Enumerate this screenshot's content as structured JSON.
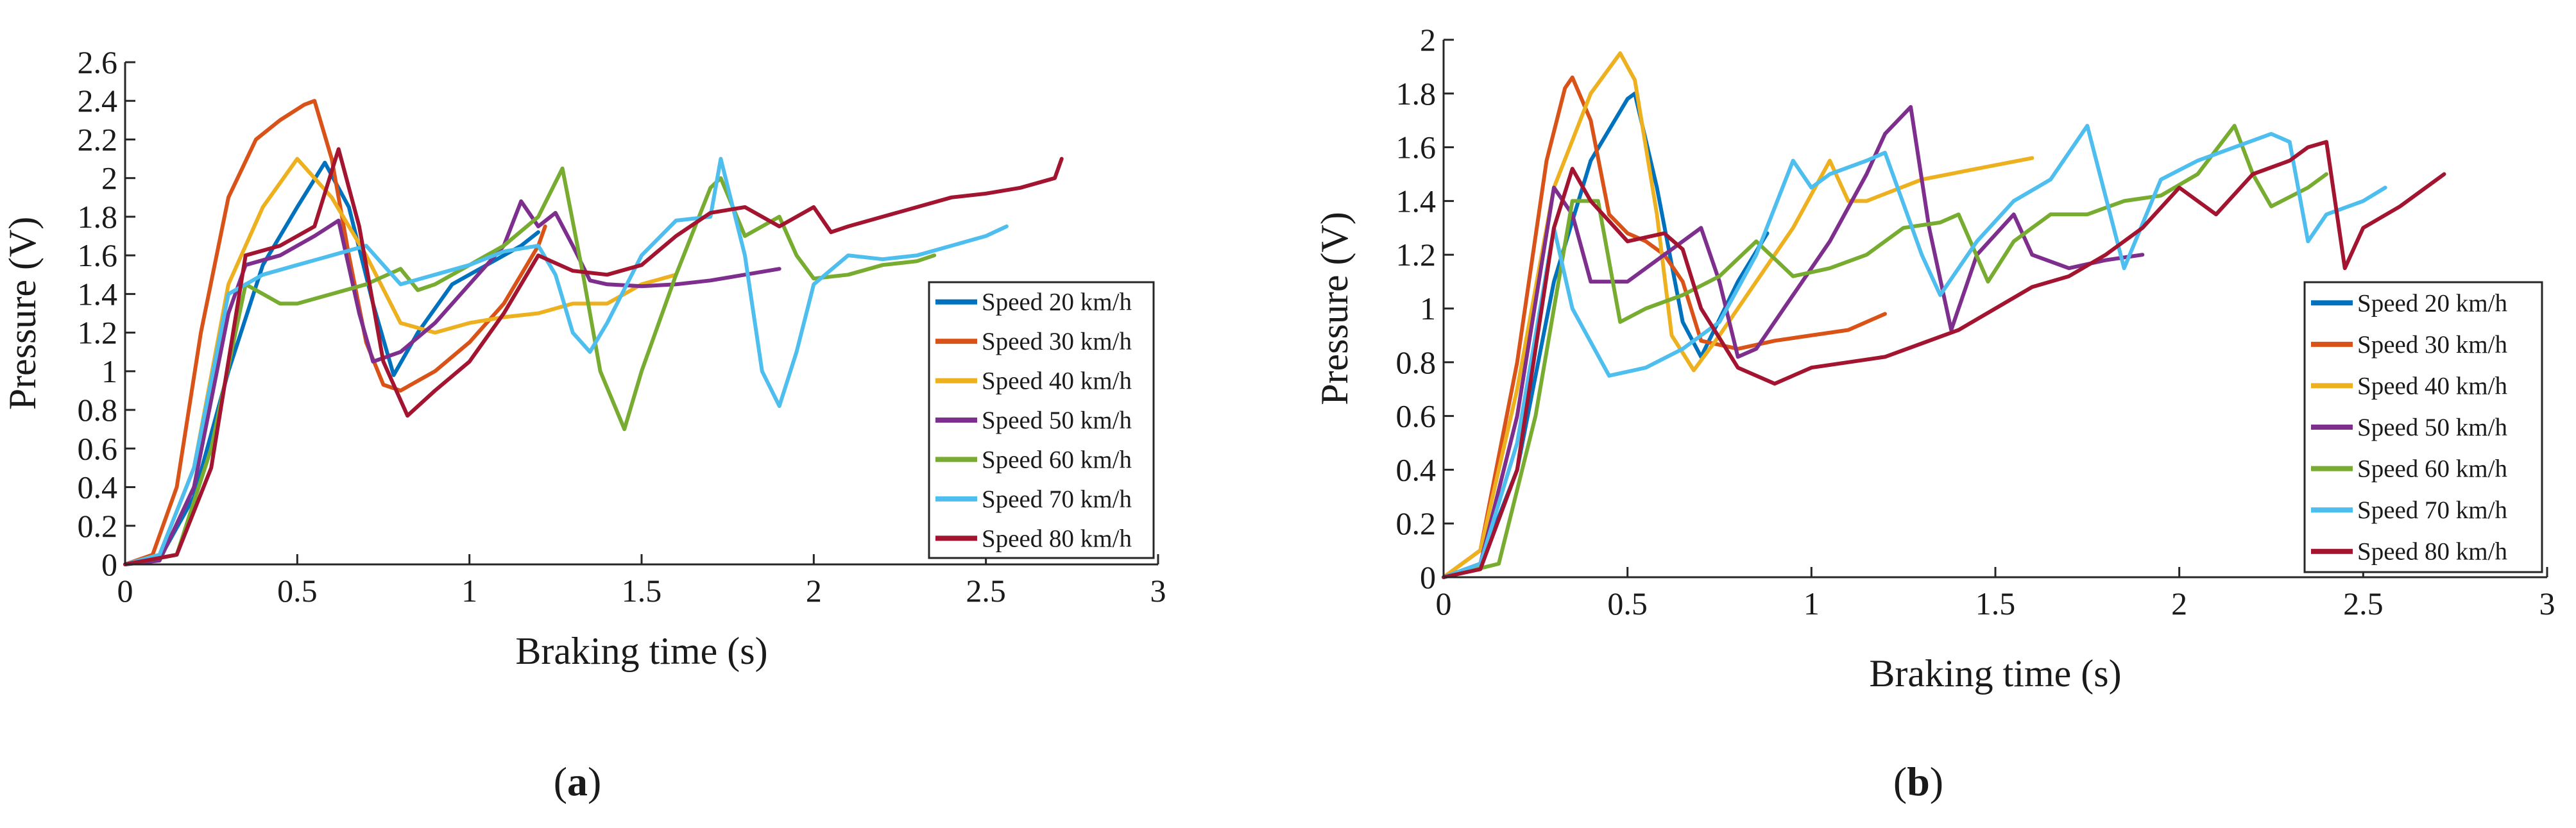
{
  "colors": {
    "series": [
      "#0072BD",
      "#D95319",
      "#EDB120",
      "#7E2F8E",
      "#77AC30",
      "#4DBEEE",
      "#A2142F"
    ]
  },
  "chart_data": [
    {
      "type": "line",
      "caption_open": "(",
      "caption_letter": "a",
      "caption_close": ")",
      "xlabel": "Braking time (s)",
      "ylabel": "Pressure (V)",
      "xlim": [
        0,
        3
      ],
      "ylim": [
        0,
        2.6
      ],
      "xticks": [
        0,
        0.5,
        1,
        1.5,
        2,
        2.5,
        3
      ],
      "xtick_labels": [
        "0",
        "0.5",
        "1",
        "1.5",
        "2",
        "2.5",
        "3"
      ],
      "yticks": [
        0,
        0.2,
        0.4,
        0.6,
        0.8,
        1,
        1.2,
        1.4,
        1.6,
        1.8,
        2,
        2.2,
        2.4,
        2.6
      ],
      "ytick_labels": [
        "0",
        "0.2",
        "0.4",
        "0.6",
        "0.8",
        "1",
        "1.2",
        "1.4",
        "1.6",
        "1.8",
        "2",
        "2.2",
        "2.4",
        "2.6"
      ],
      "legend_position": "lower-right",
      "series": [
        {
          "name": "Speed 20 km/h",
          "x": [
            0,
            0.1,
            0.2,
            0.3,
            0.4,
            0.5,
            0.58,
            0.65,
            0.72,
            0.78,
            0.85,
            0.95,
            1.05,
            1.15,
            1.2
          ],
          "y": [
            0,
            0.03,
            0.35,
            1.0,
            1.55,
            1.85,
            2.08,
            1.85,
            1.35,
            0.98,
            1.2,
            1.45,
            1.55,
            1.65,
            1.72
          ]
        },
        {
          "name": "Speed 30 km/h",
          "x": [
            0,
            0.08,
            0.15,
            0.22,
            0.3,
            0.38,
            0.45,
            0.52,
            0.55,
            0.6,
            0.65,
            0.7,
            0.75,
            0.8,
            0.9,
            1.0,
            1.1,
            1.15,
            1.2,
            1.22
          ],
          "y": [
            0,
            0.05,
            0.4,
            1.2,
            1.9,
            2.2,
            2.3,
            2.38,
            2.4,
            2.1,
            1.6,
            1.15,
            0.93,
            0.9,
            1.0,
            1.15,
            1.35,
            1.5,
            1.65,
            1.75
          ]
        },
        {
          "name": "Speed 40 km/h",
          "x": [
            0,
            0.1,
            0.2,
            0.3,
            0.4,
            0.5,
            0.55,
            0.6,
            0.7,
            0.8,
            0.9,
            1.0,
            1.1,
            1.2,
            1.3,
            1.4,
            1.45,
            1.5,
            1.6
          ],
          "y": [
            0,
            0.05,
            0.5,
            1.45,
            1.85,
            2.1,
            2.0,
            1.9,
            1.6,
            1.25,
            1.2,
            1.25,
            1.28,
            1.3,
            1.35,
            1.35,
            1.4,
            1.45,
            1.5
          ]
        },
        {
          "name": "Speed 50 km/h",
          "x": [
            0,
            0.1,
            0.2,
            0.3,
            0.35,
            0.45,
            0.55,
            0.62,
            0.68,
            0.72,
            0.8,
            0.9,
            1.0,
            1.1,
            1.15,
            1.2,
            1.25,
            1.3,
            1.35,
            1.4,
            1.5,
            1.6,
            1.7,
            1.8,
            1.9
          ],
          "y": [
            0,
            0.02,
            0.4,
            1.3,
            1.55,
            1.6,
            1.7,
            1.78,
            1.3,
            1.05,
            1.1,
            1.25,
            1.45,
            1.65,
            1.88,
            1.75,
            1.82,
            1.65,
            1.47,
            1.45,
            1.44,
            1.45,
            1.47,
            1.5,
            1.53
          ]
        },
        {
          "name": "Speed 60 km/h",
          "x": [
            0,
            0.15,
            0.25,
            0.35,
            0.45,
            0.5,
            0.6,
            0.7,
            0.8,
            0.85,
            0.9,
            1.0,
            1.1,
            1.2,
            1.27,
            1.33,
            1.38,
            1.45,
            1.5,
            1.6,
            1.7,
            1.73,
            1.8,
            1.9,
            1.95,
            2.0,
            2.1,
            2.2,
            2.3,
            2.35
          ],
          "y": [
            0,
            0.05,
            0.6,
            1.45,
            1.35,
            1.35,
            1.4,
            1.45,
            1.53,
            1.42,
            1.45,
            1.55,
            1.65,
            1.8,
            2.05,
            1.5,
            1.0,
            0.7,
            1.0,
            1.5,
            1.95,
            2.0,
            1.7,
            1.8,
            1.6,
            1.48,
            1.5,
            1.55,
            1.57,
            1.6
          ]
        },
        {
          "name": "Speed 70 km/h",
          "x": [
            0,
            0.1,
            0.2,
            0.3,
            0.4,
            0.5,
            0.6,
            0.7,
            0.8,
            0.9,
            1.0,
            1.1,
            1.2,
            1.25,
            1.3,
            1.35,
            1.4,
            1.5,
            1.6,
            1.7,
            1.73,
            1.8,
            1.85,
            1.9,
            1.95,
            2.0,
            2.1,
            2.2,
            2.3,
            2.4,
            2.5,
            2.56
          ],
          "y": [
            0,
            0.05,
            0.5,
            1.4,
            1.5,
            1.55,
            1.6,
            1.65,
            1.45,
            1.5,
            1.55,
            1.62,
            1.65,
            1.5,
            1.2,
            1.1,
            1.25,
            1.6,
            1.78,
            1.8,
            2.1,
            1.6,
            1.0,
            0.82,
            1.1,
            1.45,
            1.6,
            1.58,
            1.6,
            1.65,
            1.7,
            1.75
          ]
        },
        {
          "name": "Speed 80 km/h",
          "x": [
            0,
            0.15,
            0.25,
            0.35,
            0.45,
            0.55,
            0.62,
            0.68,
            0.75,
            0.82,
            0.9,
            1.0,
            1.1,
            1.2,
            1.3,
            1.4,
            1.5,
            1.6,
            1.7,
            1.8,
            1.9,
            2.0,
            2.05,
            2.1,
            2.2,
            2.3,
            2.4,
            2.5,
            2.6,
            2.7,
            2.72
          ],
          "y": [
            0,
            0.05,
            0.5,
            1.6,
            1.65,
            1.75,
            2.15,
            1.75,
            1.05,
            0.77,
            0.9,
            1.05,
            1.3,
            1.6,
            1.52,
            1.5,
            1.55,
            1.7,
            1.82,
            1.85,
            1.75,
            1.85,
            1.72,
            1.75,
            1.8,
            1.85,
            1.9,
            1.92,
            1.95,
            2.0,
            2.1
          ]
        }
      ]
    },
    {
      "type": "line",
      "caption_open": "(",
      "caption_letter": "b",
      "caption_close": ")",
      "xlabel": "Braking time (s)",
      "ylabel": "Pressure (V)",
      "xlim": [
        0,
        3
      ],
      "ylim": [
        0,
        2
      ],
      "xticks": [
        0,
        0.5,
        1,
        1.5,
        2,
        2.5,
        3
      ],
      "xtick_labels": [
        "0",
        "0.5",
        "1",
        "1.5",
        "2",
        "2.5",
        "3"
      ],
      "yticks": [
        0,
        0.2,
        0.4,
        0.6,
        0.8,
        1,
        1.2,
        1.4,
        1.6,
        1.8,
        2
      ],
      "ytick_labels": [
        "0",
        "0.2",
        "0.4",
        "0.6",
        "0.8",
        "1",
        "1.2",
        "1.4",
        "1.6",
        "1.8",
        "2"
      ],
      "legend_position": "lower-right",
      "series": [
        {
          "name": "Speed 20 km/h",
          "x": [
            0,
            0.1,
            0.2,
            0.3,
            0.4,
            0.5,
            0.52,
            0.58,
            0.65,
            0.7,
            0.8,
            0.88
          ],
          "y": [
            0,
            0.05,
            0.4,
            1.1,
            1.55,
            1.78,
            1.8,
            1.45,
            0.95,
            0.82,
            1.1,
            1.28
          ]
        },
        {
          "name": "Speed 30 km/h",
          "x": [
            0,
            0.1,
            0.2,
            0.28,
            0.33,
            0.35,
            0.4,
            0.45,
            0.5,
            0.55,
            0.6,
            0.65,
            0.7,
            0.8,
            0.9,
            1.0,
            1.1,
            1.2
          ],
          "y": [
            0,
            0.1,
            0.8,
            1.55,
            1.82,
            1.86,
            1.7,
            1.35,
            1.28,
            1.25,
            1.2,
            1.1,
            0.88,
            0.85,
            0.88,
            0.9,
            0.92,
            0.98
          ]
        },
        {
          "name": "Speed 40 km/h",
          "x": [
            0,
            0.1,
            0.2,
            0.3,
            0.4,
            0.48,
            0.52,
            0.58,
            0.62,
            0.68,
            0.75,
            0.85,
            0.95,
            1.05,
            1.1,
            1.15,
            1.3,
            1.45,
            1.6
          ],
          "y": [
            0,
            0.1,
            0.7,
            1.45,
            1.8,
            1.95,
            1.85,
            1.35,
            0.9,
            0.77,
            0.9,
            1.1,
            1.3,
            1.55,
            1.4,
            1.4,
            1.48,
            1.52,
            1.56
          ]
        },
        {
          "name": "Speed 50 km/h",
          "x": [
            0,
            0.1,
            0.2,
            0.3,
            0.35,
            0.4,
            0.5,
            0.6,
            0.65,
            0.7,
            0.75,
            0.8,
            0.85,
            0.95,
            1.05,
            1.15,
            1.2,
            1.27,
            1.32,
            1.38,
            1.45,
            1.55,
            1.6,
            1.7,
            1.8,
            1.9
          ],
          "y": [
            0,
            0.05,
            0.6,
            1.45,
            1.35,
            1.1,
            1.1,
            1.2,
            1.25,
            1.3,
            1.1,
            0.82,
            0.85,
            1.05,
            1.25,
            1.5,
            1.65,
            1.75,
            1.3,
            0.92,
            1.2,
            1.35,
            1.2,
            1.15,
            1.18,
            1.2
          ]
        },
        {
          "name": "Speed 60 km/h",
          "x": [
            0,
            0.15,
            0.25,
            0.35,
            0.42,
            0.48,
            0.55,
            0.65,
            0.75,
            0.85,
            0.95,
            1.05,
            1.15,
            1.25,
            1.35,
            1.4,
            1.48,
            1.55,
            1.65,
            1.75,
            1.85,
            1.95,
            2.05,
            2.15,
            2.2,
            2.25,
            2.35,
            2.4
          ],
          "y": [
            0,
            0.05,
            0.6,
            1.4,
            1.4,
            0.95,
            1.0,
            1.05,
            1.12,
            1.25,
            1.12,
            1.15,
            1.2,
            1.3,
            1.32,
            1.35,
            1.1,
            1.25,
            1.35,
            1.35,
            1.4,
            1.42,
            1.5,
            1.68,
            1.5,
            1.38,
            1.45,
            1.5
          ]
        },
        {
          "name": "Speed 70 km/h",
          "x": [
            0,
            0.1,
            0.2,
            0.3,
            0.35,
            0.45,
            0.55,
            0.65,
            0.75,
            0.85,
            0.95,
            1.0,
            1.05,
            1.15,
            1.2,
            1.3,
            1.35,
            1.45,
            1.55,
            1.65,
            1.75,
            1.85,
            1.95,
            2.05,
            2.15,
            2.25,
            2.3,
            2.35,
            2.4,
            2.5,
            2.56
          ],
          "y": [
            0,
            0.05,
            0.5,
            1.3,
            1.0,
            0.75,
            0.78,
            0.85,
            0.95,
            1.2,
            1.55,
            1.45,
            1.5,
            1.55,
            1.58,
            1.2,
            1.05,
            1.25,
            1.4,
            1.48,
            1.68,
            1.15,
            1.48,
            1.55,
            1.6,
            1.65,
            1.62,
            1.25,
            1.35,
            1.4,
            1.45
          ]
        },
        {
          "name": "Speed 80 km/h",
          "x": [
            0,
            0.1,
            0.2,
            0.3,
            0.35,
            0.4,
            0.5,
            0.6,
            0.65,
            0.7,
            0.8,
            0.9,
            1.0,
            1.1,
            1.2,
            1.3,
            1.4,
            1.5,
            1.6,
            1.7,
            1.8,
            1.9,
            2.0,
            2.1,
            2.2,
            2.3,
            2.35,
            2.4,
            2.45,
            2.5,
            2.6,
            2.7,
            2.72
          ],
          "y": [
            0,
            0.03,
            0.4,
            1.3,
            1.52,
            1.4,
            1.25,
            1.28,
            1.22,
            1.0,
            0.78,
            0.72,
            0.78,
            0.8,
            0.82,
            0.87,
            0.92,
            1.0,
            1.08,
            1.12,
            1.2,
            1.3,
            1.45,
            1.35,
            1.5,
            1.55,
            1.6,
            1.62,
            1.15,
            1.3,
            1.38,
            1.48,
            1.5
          ]
        }
      ]
    }
  ]
}
